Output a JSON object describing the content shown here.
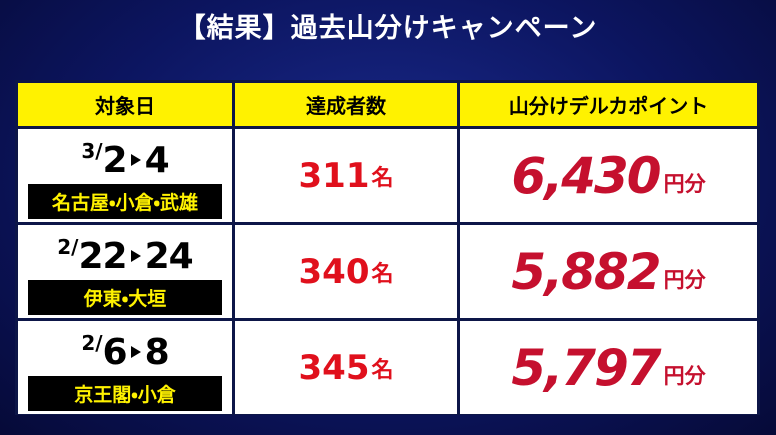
{
  "title": "【結果】過去山分けキャンペーン",
  "table": {
    "header": [
      "対象日",
      "達成者数",
      "山分けデルカポイント"
    ],
    "rows": [
      {
        "date": {
          "month": "3/",
          "start": "2",
          "end": "4"
        },
        "venue": "名古屋・小倉・武雄",
        "count": "311",
        "count_unit": "名",
        "points": "6,430",
        "points_unit": "円分"
      },
      {
        "date": {
          "month": "2/",
          "start": "22",
          "end": "24"
        },
        "venue": "伊東・大垣",
        "count": "340",
        "count_unit": "名",
        "points": "5,882",
        "points_unit": "円分"
      },
      {
        "date": {
          "month": "2/",
          "start": "6",
          "end": "8"
        },
        "venue": "京王閣・小倉",
        "count": "345",
        "count_unit": "名",
        "points": "5,797",
        "points_unit": "円分"
      }
    ]
  }
}
